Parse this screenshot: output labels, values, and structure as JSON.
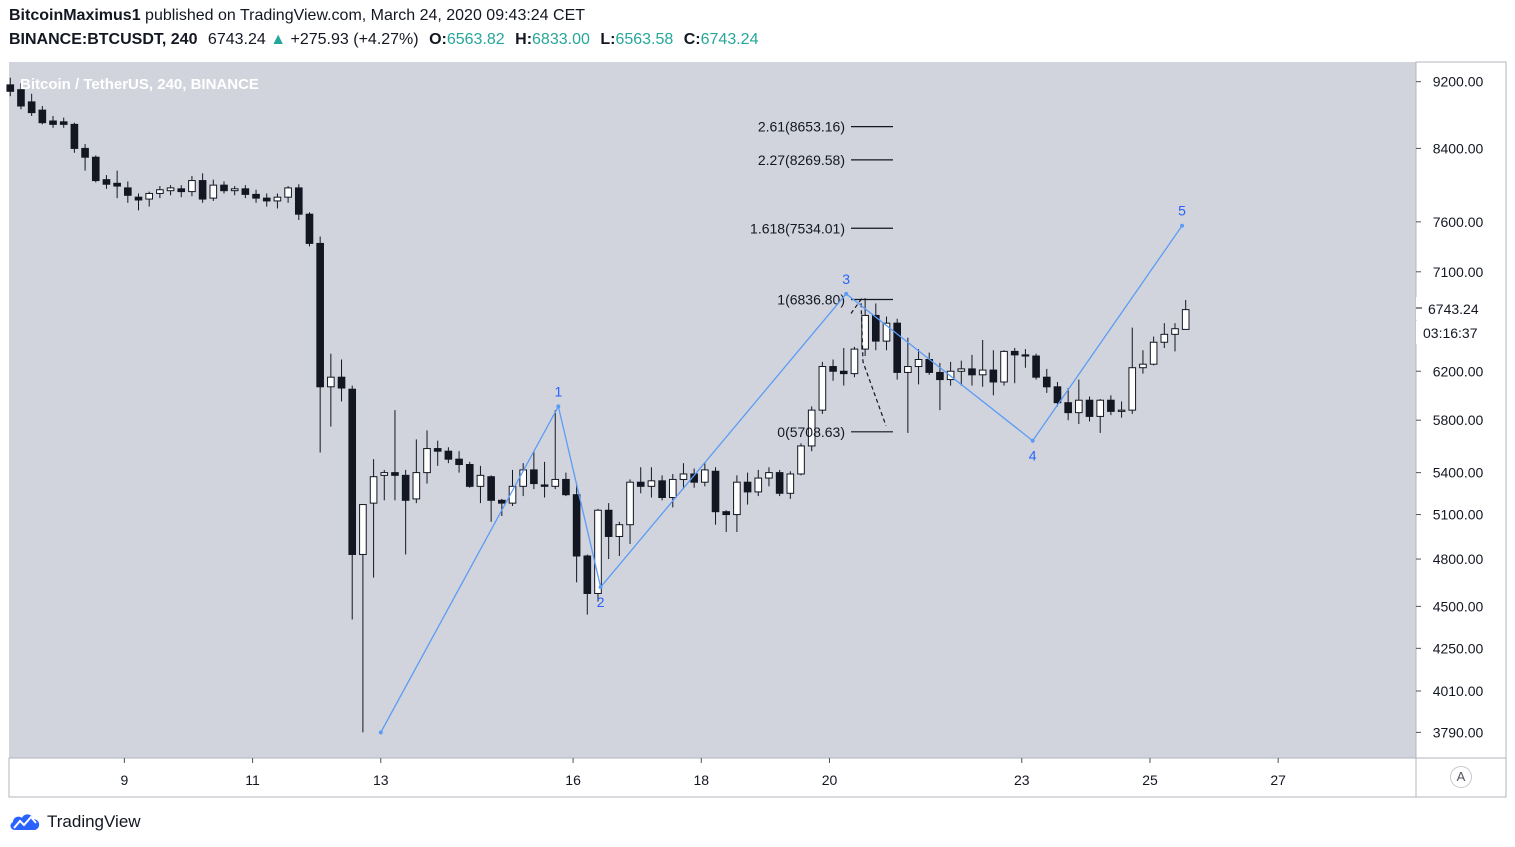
{
  "header": {
    "author": "BitcoinMaximus1",
    "published": "published on TradingView.com, March 24, 2020 09:43:24 CET",
    "symbol": "BINANCE:BTCUSDT, 240",
    "last": "6743.24",
    "arrow": "▲",
    "change": "+275.93 (+4.27%)",
    "o_label": "O:",
    "o_value": "6563.82",
    "h_label": "H:",
    "h_value": "6833.00",
    "l_label": "L:",
    "l_value": "6563.58",
    "c_label": "C:",
    "c_value": "6743.24"
  },
  "footer": {
    "brand": "TradingView",
    "auto_scale": "A"
  },
  "chart_data": {
    "type": "candlestick",
    "title": "Bitcoin / TetherUS, 240, BINANCE",
    "price_scale": "log",
    "ylim": [
      3660,
      9450
    ],
    "y_ticks": [
      9200,
      8400,
      7600,
      7100,
      6200,
      5800,
      5400,
      5100,
      4800,
      4500,
      4250,
      4010,
      3790
    ],
    "y_tick_labels": [
      "9200.00",
      "8400.00",
      "7600.00",
      "7100.00",
      "6200.00",
      "5800.00",
      "5400.00",
      "5100.00",
      "4800.00",
      "4500.00",
      "4250.00",
      "4010.00",
      "3790.00"
    ],
    "x_unit": "day of March 2020",
    "x_ticks": [
      9,
      11,
      13,
      16,
      18,
      20,
      23,
      25,
      27
    ],
    "x_tick_labels": [
      "9",
      "11",
      "13",
      "16",
      "18",
      "20",
      "23",
      "25",
      "27"
    ],
    "xlim": [
      7.2,
      29.15
    ],
    "last_price_label": "6743.24",
    "countdown_label": "03:16:37",
    "colors": {
      "background": "#d1d4dc",
      "candle_up": "#ffffff",
      "candle_down": "#131722",
      "wave": "#5b9cf6",
      "wave_label": "#2962ff",
      "price_text": "#131722"
    },
    "candles": [
      {
        "o": 9160,
        "h": 9250,
        "l": 9020,
        "c": 9080
      },
      {
        "o": 9100,
        "h": 9180,
        "l": 8860,
        "c": 8900
      },
      {
        "o": 8950,
        "h": 9050,
        "l": 8780,
        "c": 8820
      },
      {
        "o": 8850,
        "h": 8900,
        "l": 8680,
        "c": 8700
      },
      {
        "o": 8720,
        "h": 8780,
        "l": 8640,
        "c": 8680
      },
      {
        "o": 8710,
        "h": 8760,
        "l": 8640,
        "c": 8680
      },
      {
        "o": 8680,
        "h": 8700,
        "l": 8350,
        "c": 8400
      },
      {
        "o": 8400,
        "h": 8450,
        "l": 8150,
        "c": 8300
      },
      {
        "o": 8300,
        "h": 8320,
        "l": 8020,
        "c": 8040
      },
      {
        "o": 8050,
        "h": 8100,
        "l": 7950,
        "c": 8000
      },
      {
        "o": 8010,
        "h": 8150,
        "l": 7850,
        "c": 7980
      },
      {
        "o": 7960,
        "h": 8030,
        "l": 7800,
        "c": 7880
      },
      {
        "o": 7860,
        "h": 7900,
        "l": 7720,
        "c": 7830
      },
      {
        "o": 7840,
        "h": 7920,
        "l": 7760,
        "c": 7900
      },
      {
        "o": 7900,
        "h": 7980,
        "l": 7850,
        "c": 7940
      },
      {
        "o": 7930,
        "h": 7990,
        "l": 7880,
        "c": 7960
      },
      {
        "o": 7950,
        "h": 7990,
        "l": 7860,
        "c": 7920
      },
      {
        "o": 7920,
        "h": 8090,
        "l": 7870,
        "c": 8040
      },
      {
        "o": 8040,
        "h": 8120,
        "l": 7800,
        "c": 7840
      },
      {
        "o": 7850,
        "h": 8050,
        "l": 7820,
        "c": 7990
      },
      {
        "o": 7990,
        "h": 8030,
        "l": 7900,
        "c": 7930
      },
      {
        "o": 7930,
        "h": 7980,
        "l": 7880,
        "c": 7950
      },
      {
        "o": 7950,
        "h": 7990,
        "l": 7850,
        "c": 7890
      },
      {
        "o": 7890,
        "h": 7940,
        "l": 7800,
        "c": 7850
      },
      {
        "o": 7850,
        "h": 7900,
        "l": 7760,
        "c": 7820
      },
      {
        "o": 7820,
        "h": 7900,
        "l": 7740,
        "c": 7860
      },
      {
        "o": 7860,
        "h": 7980,
        "l": 7800,
        "c": 7960
      },
      {
        "o": 7960,
        "h": 8000,
        "l": 7620,
        "c": 7680
      },
      {
        "o": 7680,
        "h": 7700,
        "l": 7350,
        "c": 7380
      },
      {
        "o": 7380,
        "h": 7450,
        "l": 5550,
        "c": 6070
      },
      {
        "o": 6070,
        "h": 6350,
        "l": 5750,
        "c": 6150
      },
      {
        "o": 6150,
        "h": 6300,
        "l": 5950,
        "c": 6060
      },
      {
        "o": 6050,
        "h": 6080,
        "l": 4420,
        "c": 4830
      },
      {
        "o": 4830,
        "h": 5150,
        "l": 3790,
        "c": 5170
      },
      {
        "o": 5180,
        "h": 5500,
        "l": 4680,
        "c": 5370
      },
      {
        "o": 5380,
        "h": 5420,
        "l": 5200,
        "c": 5400
      },
      {
        "o": 5400,
        "h": 5880,
        "l": 5200,
        "c": 5380
      },
      {
        "o": 5380,
        "h": 5420,
        "l": 4830,
        "c": 5200
      },
      {
        "o": 5210,
        "h": 5650,
        "l": 5180,
        "c": 5400
      },
      {
        "o": 5400,
        "h": 5720,
        "l": 5320,
        "c": 5580
      },
      {
        "o": 5580,
        "h": 5640,
        "l": 5450,
        "c": 5560
      },
      {
        "o": 5560,
        "h": 5590,
        "l": 5470,
        "c": 5500
      },
      {
        "o": 5500,
        "h": 5560,
        "l": 5400,
        "c": 5460
      },
      {
        "o": 5460,
        "h": 5480,
        "l": 5290,
        "c": 5300
      },
      {
        "o": 5300,
        "h": 5450,
        "l": 5180,
        "c": 5380
      },
      {
        "o": 5370,
        "h": 5380,
        "l": 5050,
        "c": 5200
      },
      {
        "o": 5200,
        "h": 5210,
        "l": 5090,
        "c": 5180
      },
      {
        "o": 5180,
        "h": 5420,
        "l": 5160,
        "c": 5300
      },
      {
        "o": 5300,
        "h": 5470,
        "l": 5230,
        "c": 5420
      },
      {
        "o": 5420,
        "h": 5560,
        "l": 5280,
        "c": 5320
      },
      {
        "o": 5310,
        "h": 5480,
        "l": 5220,
        "c": 5300
      },
      {
        "o": 5300,
        "h": 5880,
        "l": 5280,
        "c": 5350
      },
      {
        "o": 5350,
        "h": 5400,
        "l": 5230,
        "c": 5240
      },
      {
        "o": 5240,
        "h": 5320,
        "l": 4650,
        "c": 4820
      },
      {
        "o": 4820,
        "h": 4830,
        "l": 4450,
        "c": 4580
      },
      {
        "o": 4580,
        "h": 5140,
        "l": 4530,
        "c": 5130
      },
      {
        "o": 5130,
        "h": 5180,
        "l": 4800,
        "c": 4950
      },
      {
        "o": 4950,
        "h": 5050,
        "l": 4820,
        "c": 5030
      },
      {
        "o": 5030,
        "h": 5350,
        "l": 4900,
        "c": 5330
      },
      {
        "o": 5330,
        "h": 5440,
        "l": 5250,
        "c": 5300
      },
      {
        "o": 5300,
        "h": 5440,
        "l": 5220,
        "c": 5340
      },
      {
        "o": 5340,
        "h": 5380,
        "l": 5200,
        "c": 5220
      },
      {
        "o": 5220,
        "h": 5390,
        "l": 5150,
        "c": 5350
      },
      {
        "o": 5350,
        "h": 5470,
        "l": 5280,
        "c": 5390
      },
      {
        "o": 5390,
        "h": 5430,
        "l": 5290,
        "c": 5330
      },
      {
        "o": 5330,
        "h": 5470,
        "l": 5300,
        "c": 5420
      },
      {
        "o": 5410,
        "h": 5440,
        "l": 5030,
        "c": 5120
      },
      {
        "o": 5120,
        "h": 5130,
        "l": 4980,
        "c": 5100
      },
      {
        "o": 5100,
        "h": 5380,
        "l": 4980,
        "c": 5330
      },
      {
        "o": 5330,
        "h": 5400,
        "l": 5170,
        "c": 5260
      },
      {
        "o": 5260,
        "h": 5420,
        "l": 5230,
        "c": 5360
      },
      {
        "o": 5360,
        "h": 5440,
        "l": 5300,
        "c": 5400
      },
      {
        "o": 5400,
        "h": 5420,
        "l": 5230,
        "c": 5250
      },
      {
        "o": 5250,
        "h": 5410,
        "l": 5210,
        "c": 5390
      },
      {
        "o": 5390,
        "h": 5620,
        "l": 5380,
        "c": 5600
      },
      {
        "o": 5600,
        "h": 5910,
        "l": 5560,
        "c": 5880
      },
      {
        "o": 5880,
        "h": 6280,
        "l": 5850,
        "c": 6240
      },
      {
        "o": 6240,
        "h": 6300,
        "l": 6120,
        "c": 6200
      },
      {
        "o": 6200,
        "h": 6400,
        "l": 6080,
        "c": 6180
      },
      {
        "o": 6180,
        "h": 6410,
        "l": 6150,
        "c": 6390
      },
      {
        "o": 6390,
        "h": 6850,
        "l": 6330,
        "c": 6690
      },
      {
        "o": 6690,
        "h": 6800,
        "l": 6380,
        "c": 6460
      },
      {
        "o": 6460,
        "h": 6680,
        "l": 6380,
        "c": 6620
      },
      {
        "o": 6620,
        "h": 6660,
        "l": 6130,
        "c": 6190
      },
      {
        "o": 6190,
        "h": 6490,
        "l": 5700,
        "c": 6240
      },
      {
        "o": 6240,
        "h": 6390,
        "l": 6090,
        "c": 6300
      },
      {
        "o": 6300,
        "h": 6360,
        "l": 6170,
        "c": 6190
      },
      {
        "o": 6190,
        "h": 6270,
        "l": 5880,
        "c": 6130
      },
      {
        "o": 6130,
        "h": 6280,
        "l": 6080,
        "c": 6200
      },
      {
        "o": 6200,
        "h": 6290,
        "l": 6080,
        "c": 6220
      },
      {
        "o": 6220,
        "h": 6340,
        "l": 6080,
        "c": 6170
      },
      {
        "o": 6170,
        "h": 6470,
        "l": 6070,
        "c": 6210
      },
      {
        "o": 6210,
        "h": 6380,
        "l": 6000,
        "c": 6110
      },
      {
        "o": 6110,
        "h": 6380,
        "l": 6080,
        "c": 6370
      },
      {
        "o": 6370,
        "h": 6400,
        "l": 6100,
        "c": 6340
      },
      {
        "o": 6340,
        "h": 6390,
        "l": 6230,
        "c": 6330
      },
      {
        "o": 6330,
        "h": 6350,
        "l": 6130,
        "c": 6150
      },
      {
        "o": 6150,
        "h": 6220,
        "l": 6020,
        "c": 6070
      },
      {
        "o": 6070,
        "h": 6110,
        "l": 5910,
        "c": 5940
      },
      {
        "o": 5940,
        "h": 6060,
        "l": 5800,
        "c": 5860
      },
      {
        "o": 5860,
        "h": 6130,
        "l": 5770,
        "c": 5960
      },
      {
        "o": 5960,
        "h": 5990,
        "l": 5790,
        "c": 5830
      },
      {
        "o": 5830,
        "h": 5970,
        "l": 5700,
        "c": 5960
      },
      {
        "o": 5960,
        "h": 6000,
        "l": 5840,
        "c": 5870
      },
      {
        "o": 5870,
        "h": 5950,
        "l": 5820,
        "c": 5880
      },
      {
        "o": 5880,
        "h": 6580,
        "l": 5850,
        "c": 6230
      },
      {
        "o": 6230,
        "h": 6380,
        "l": 6180,
        "c": 6260
      },
      {
        "o": 6260,
        "h": 6500,
        "l": 6250,
        "c": 6450
      },
      {
        "o": 6450,
        "h": 6620,
        "l": 6400,
        "c": 6520
      },
      {
        "o": 6520,
        "h": 6620,
        "l": 6370,
        "c": 6570
      },
      {
        "o": 6563.82,
        "h": 6833,
        "l": 6563.58,
        "c": 6743.24
      }
    ],
    "candle_start_day": 7.22,
    "candle_step_days": 0.1667,
    "wave": [
      {
        "label": "",
        "day": 13.0,
        "price": 3790
      },
      {
        "label": "1",
        "day": 15.77,
        "price": 5910
      },
      {
        "label": "2",
        "day": 16.43,
        "price": 4620
      },
      {
        "label": "3",
        "day": 20.26,
        "price": 6890
      },
      {
        "label": "4",
        "day": 23.17,
        "price": 5640
      },
      {
        "label": "5",
        "day": 25.5,
        "price": 7560
      }
    ],
    "fib_levels": [
      {
        "label": "2.61(8653.16)",
        "price": 8653.16
      },
      {
        "label": "2.27(8269.58)",
        "price": 8269.58
      },
      {
        "label": "1.618(7534.01)",
        "price": 7534.01
      },
      {
        "label": "1(6836.80)",
        "price": 6836.8
      },
      {
        "label": "0(5708.63)",
        "price": 5708.63
      }
    ]
  }
}
